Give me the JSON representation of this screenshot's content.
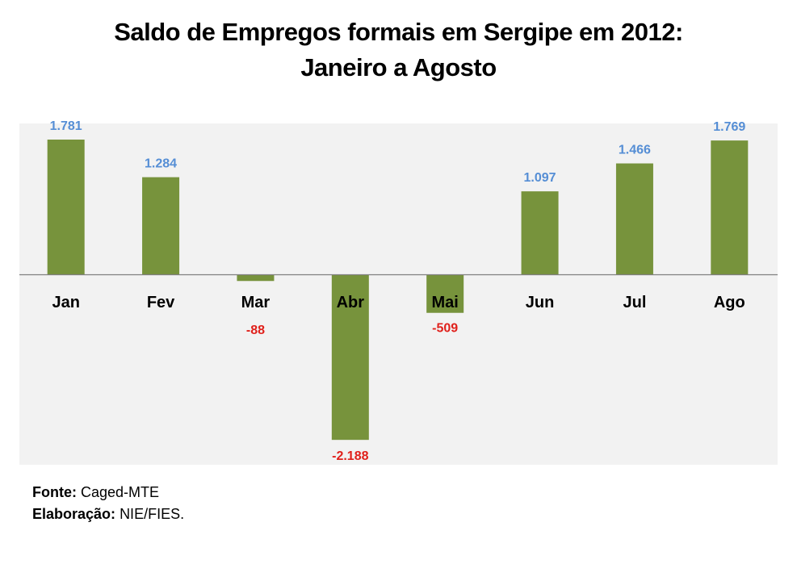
{
  "title_line1": "Saldo de Empregos formais em Sergipe em 2012:",
  "title_line2": "Janeiro a Agosto",
  "chart_data": {
    "type": "bar",
    "title": "Saldo de Empregos formais em Sergipe em 2012: Janeiro a Agosto",
    "xlabel": "",
    "ylabel": "",
    "categories": [
      "Jan",
      "Fev",
      "Mar",
      "Abr",
      "Mai",
      "Jun",
      "Jul",
      "Ago"
    ],
    "values": [
      1781,
      1284,
      -88,
      -2188,
      -509,
      1097,
      1466,
      1769
    ],
    "value_labels": [
      "1.781",
      "1.284",
      "-88",
      "-2.188",
      "-509",
      "1.097",
      "1.466",
      "1.769"
    ],
    "ylim": [
      -2500,
      2000
    ],
    "grid": false,
    "legend": "none"
  },
  "colors": {
    "bar": "#77933c",
    "positive_label": "#558ed5",
    "negative_label": "#e0201b",
    "plot_bg": "#f2f2f2",
    "axis": "#808080"
  },
  "footer": {
    "source_label": "Fonte:",
    "source_value": "Caged-MTE",
    "credit_label": "Elaboração:",
    "credit_value": "NIE/FIES."
  }
}
